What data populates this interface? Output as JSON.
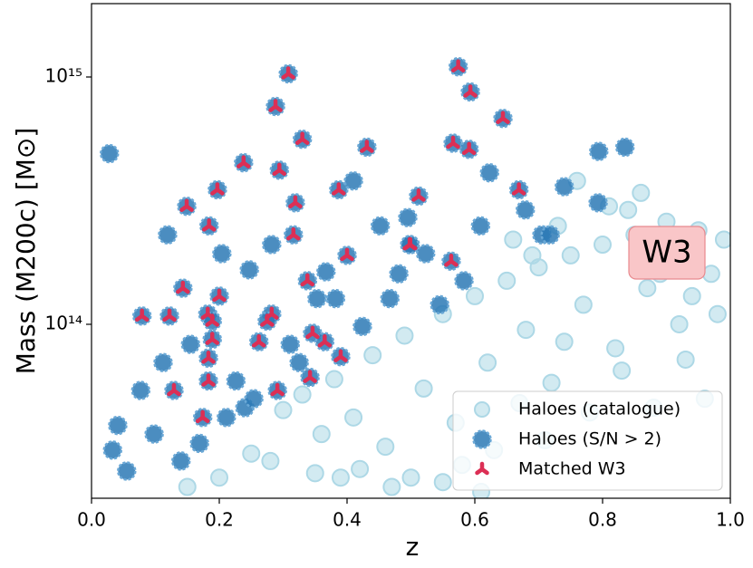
{
  "chart_data": {
    "type": "scatter",
    "x_label": "z",
    "y_label": "Mass (M200c) [M⊙]",
    "yscale": "log",
    "xlim": [
      0,
      1
    ],
    "ylim": [
      19800000000000.0,
      1980000000000000.0
    ],
    "xticks": [
      {
        "value": 0,
        "label": "0.0"
      },
      0.2,
      0.4,
      0.6,
      0.8,
      {
        "value": 1,
        "label": "1.0"
      }
    ],
    "yticks": [
      {
        "value": 100000000000000.0,
        "label": "10¹⁴"
      },
      {
        "value": 1000000000000000.0,
        "label": "10¹⁵"
      }
    ],
    "legend": "lower right",
    "annotation": "W3",
    "series": [
      {
        "name": "Haloes (catalogue)",
        "color": "#add8e6",
        "x": [
          0.3,
          0.33,
          0.36,
          0.38,
          0.41,
          0.44,
          0.46,
          0.49,
          0.52,
          0.55,
          0.57,
          0.6,
          0.62,
          0.65,
          0.68,
          0.7,
          0.72,
          0.75,
          0.77,
          0.8,
          0.82,
          0.85,
          0.87,
          0.9,
          0.92,
          0.95,
          0.97,
          0.99,
          0.25,
          0.28,
          0.35,
          0.42,
          0.5,
          0.58,
          0.63,
          0.67,
          0.71,
          0.74,
          0.78,
          0.83,
          0.88,
          0.93,
          0.96,
          0.98,
          0.66,
          0.73,
          0.81,
          0.86,
          0.91,
          0.94,
          0.76,
          0.69,
          0.84,
          0.89,
          0.55,
          0.61,
          0.47,
          0.39,
          0.2,
          0.15
        ],
        "values": [
          45000000000000.0,
          52000000000000.0,
          36000000000000.0,
          60000000000000.0,
          42000000000000.0,
          75000000000000.0,
          32000000000000.0,
          90000000000000.0,
          55000000000000.0,
          110000000000000.0,
          40000000000000.0,
          130000000000000.0,
          70000000000000.0,
          150000000000000.0,
          95000000000000.0,
          170000000000000.0,
          58000000000000.0,
          190000000000000.0,
          120000000000000.0,
          210000000000000.0,
          80000000000000.0,
          230000000000000.0,
          140000000000000.0,
          260000000000000.0,
          100000000000000.0,
          240000000000000.0,
          160000000000000.0,
          220000000000000.0,
          30000000000000.0,
          28000000000000.0,
          25000000000000.0,
          26000000000000.0,
          24000000000000.0,
          27000000000000.0,
          31000000000000.0,
          48000000000000.0,
          34000000000000.0,
          85000000000000.0,
          44000000000000.0,
          65000000000000.0,
          46000000000000.0,
          72000000000000.0,
          50000000000000.0,
          110000000000000.0,
          220000000000000.0,
          250000000000000.0,
          300000000000000.0,
          340000000000000.0,
          180000000000000.0,
          130000000000000.0,
          380000000000000.0,
          190000000000000.0,
          290000000000000.0,
          160000000000000.0,
          23000000000000.0,
          21000000000000.0,
          22000000000000.0,
          24000000000000.0,
          24000000000000.0,
          22000000000000.0
        ]
      },
      {
        "name": "Haloes (S/N > 2)",
        "color": "#2b79b5",
        "x": [
          0.308,
          0.574,
          0.593,
          0.288,
          0.644,
          0.33,
          0.431,
          0.566,
          0.591,
          0.238,
          0.294,
          0.197,
          0.387,
          0.319,
          0.512,
          0.669,
          0.149,
          0.184,
          0.316,
          0.499,
          0.498,
          0.4,
          0.563,
          0.338,
          0.143,
          0.2,
          0.182,
          0.079,
          0.122,
          0.282,
          0.189,
          0.275,
          0.189,
          0.262,
          0.346,
          0.365,
          0.39,
          0.183,
          0.342,
          0.183,
          0.129,
          0.291,
          0.174,
          0.028,
          0.119,
          0.041,
          0.033,
          0.705,
          0.74,
          0.794,
          0.835,
          0.793,
          0.718,
          0.583,
          0.545,
          0.247,
          0.077,
          0.098,
          0.169,
          0.24,
          0.424,
          0.481,
          0.353,
          0.226,
          0.452,
          0.623,
          0.41,
          0.204,
          0.155,
          0.311,
          0.523,
          0.609,
          0.112,
          0.282,
          0.367,
          0.467,
          0.055,
          0.14,
          0.211,
          0.254,
          0.325,
          0.382,
          0.495,
          0.679
        ],
        "values": [
          1030000000000000.0,
          1100000000000000.0,
          870000000000000.0,
          760000000000000.0,
          680000000000000.0,
          560000000000000.0,
          520000000000000.0,
          540000000000000.0,
          510000000000000.0,
          450000000000000.0,
          420000000000000.0,
          350000000000000.0,
          350000000000000.0,
          310000000000000.0,
          330000000000000.0,
          350000000000000.0,
          300000000000000.0,
          250000000000000.0,
          230000000000000.0,
          210000000000000.0,
          210000000000000.0,
          190000000000000.0,
          180000000000000.0,
          150000000000000.0,
          140000000000000.0,
          130000000000000.0,
          110000000000000.0,
          108000000000000.0,
          108000000000000.0,
          110000000000000.0,
          103000000000000.0,
          103000000000000.0,
          87000000000000.0,
          85000000000000.0,
          92000000000000.0,
          85000000000000.0,
          74000000000000.0,
          73000000000000.0,
          61000000000000.0,
          59000000000000.0,
          54000000000000.0,
          54000000000000.0,
          42000000000000.0,
          490000000000000.0,
          230000000000000.0,
          39000000000000.0,
          31000000000000.0,
          230000000000000.0,
          360000000000000.0,
          500000000000000.0,
          520000000000000.0,
          310000000000000.0,
          230000000000000.0,
          150000000000000.0,
          120000000000000.0,
          166000000000000.0,
          54000000000000.0,
          36000000000000.0,
          33000000000000.0,
          46000000000000.0,
          98000000000000.0,
          160000000000000.0,
          127000000000000.0,
          59000000000000.0,
          250000000000000.0,
          410000000000000.0,
          380000000000000.0,
          193000000000000.0,
          83000000000000.0,
          83000000000000.0,
          193000000000000.0,
          250000000000000.0,
          70000000000000.0,
          210000000000000.0,
          163000000000000.0,
          127000000000000.0,
          25500000000000.0,
          28000000000000.0,
          42000000000000.0,
          50000000000000.0,
          70000000000000.0,
          127000000000000.0,
          270000000000000.0,
          290000000000000.0
        ]
      },
      {
        "name": "Matched W3",
        "color": "#dc2f55",
        "x": [
          0.308,
          0.574,
          0.593,
          0.288,
          0.644,
          0.33,
          0.431,
          0.566,
          0.591,
          0.238,
          0.294,
          0.197,
          0.387,
          0.319,
          0.512,
          0.669,
          0.149,
          0.184,
          0.316,
          0.499,
          0.498,
          0.4,
          0.563,
          0.338,
          0.143,
          0.2,
          0.182,
          0.079,
          0.122,
          0.282,
          0.189,
          0.275,
          0.189,
          0.262,
          0.346,
          0.365,
          0.39,
          0.183,
          0.342,
          0.183,
          0.129,
          0.291,
          0.174
        ],
        "values": [
          1030000000000000.0,
          1100000000000000.0,
          870000000000000.0,
          760000000000000.0,
          680000000000000.0,
          560000000000000.0,
          520000000000000.0,
          540000000000000.0,
          510000000000000.0,
          450000000000000.0,
          420000000000000.0,
          350000000000000.0,
          350000000000000.0,
          310000000000000.0,
          330000000000000.0,
          350000000000000.0,
          300000000000000.0,
          250000000000000.0,
          230000000000000.0,
          210000000000000.0,
          210000000000000.0,
          190000000000000.0,
          180000000000000.0,
          150000000000000.0,
          140000000000000.0,
          130000000000000.0,
          110000000000000.0,
          108000000000000.0,
          108000000000000.0,
          110000000000000.0,
          103000000000000.0,
          103000000000000.0,
          87000000000000.0,
          85000000000000.0,
          92000000000000.0,
          85000000000000.0,
          74000000000000.0,
          73000000000000.0,
          61000000000000.0,
          59000000000000.0,
          54000000000000.0,
          54000000000000.0,
          42000000000000.0
        ]
      }
    ]
  }
}
